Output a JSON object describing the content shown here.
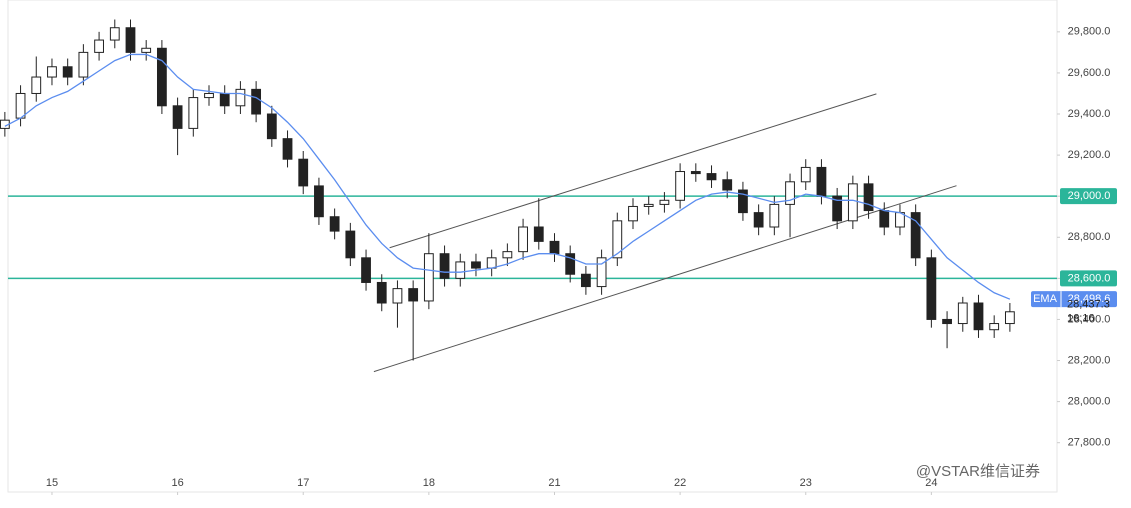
{
  "chart_data": {
    "type": "candlestick",
    "x": [
      0,
      1,
      2,
      3,
      4,
      5,
      6,
      7,
      8,
      9,
      10,
      11,
      12,
      13,
      14,
      15,
      16,
      17,
      18,
      19,
      20,
      21,
      22,
      23,
      24,
      25,
      26,
      27,
      28,
      29,
      30,
      31,
      32,
      33,
      34,
      35,
      36,
      37,
      38,
      39,
      40,
      41,
      42,
      43,
      44,
      45,
      46,
      47,
      48,
      49,
      50,
      51,
      52,
      53,
      54,
      55,
      56,
      57,
      58,
      59,
      60,
      61,
      62,
      63,
      64
    ],
    "open": [
      29330,
      29380,
      29500,
      29580,
      29630,
      29580,
      29700,
      29760,
      29820,
      29700,
      29720,
      29440,
      29330,
      29480,
      29500,
      29440,
      29520,
      29400,
      29280,
      29180,
      29050,
      28900,
      28830,
      28700,
      28580,
      28480,
      28550,
      28490,
      28720,
      28600,
      28680,
      28650,
      28700,
      28730,
      28850,
      28780,
      28720,
      28620,
      28560,
      28700,
      28880,
      28950,
      28960,
      28980,
      29120,
      29110,
      29080,
      29030,
      28920,
      28850,
      28960,
      29070,
      29140,
      29000,
      28880,
      29060,
      28930,
      28850,
      28920,
      28700,
      28400,
      28380,
      28480,
      28350,
      28380
    ],
    "high": [
      29410,
      29540,
      29680,
      29670,
      29670,
      29740,
      29800,
      29860,
      29860,
      29760,
      29760,
      29480,
      29520,
      29540,
      29540,
      29560,
      29560,
      29440,
      29320,
      29220,
      29090,
      28940,
      28870,
      28740,
      28620,
      28590,
      28590,
      28820,
      28760,
      28720,
      28720,
      28740,
      28770,
      28890,
      28990,
      28820,
      28760,
      28660,
      28740,
      28920,
      28990,
      29000,
      29020,
      29160,
      29160,
      29150,
      29120,
      29070,
      28960,
      29000,
      29110,
      29180,
      29180,
      29040,
      29100,
      29100,
      28970,
      28960,
      28960,
      28740,
      28440,
      28510,
      28520,
      28420,
      28480
    ],
    "low": [
      29290,
      29340,
      29460,
      29540,
      29540,
      29540,
      29660,
      29720,
      29660,
      29660,
      29400,
      29200,
      29290,
      29440,
      29400,
      29400,
      29360,
      29240,
      29140,
      29010,
      28860,
      28790,
      28660,
      28540,
      28440,
      28360,
      28200,
      28450,
      28560,
      28560,
      28610,
      28610,
      28660,
      28690,
      28740,
      28680,
      28580,
      28520,
      28520,
      28660,
      28840,
      28910,
      28920,
      28940,
      29070,
      29040,
      28990,
      28880,
      28810,
      28810,
      28800,
      29030,
      28960,
      28840,
      28840,
      28890,
      28810,
      28810,
      28660,
      28360,
      28260,
      28340,
      28310,
      28310,
      28340
    ],
    "close": [
      29370,
      29500,
      29580,
      29630,
      29580,
      29700,
      29760,
      29820,
      29700,
      29720,
      29440,
      29330,
      29480,
      29500,
      29440,
      29520,
      29400,
      29280,
      29180,
      29050,
      28900,
      28830,
      28700,
      28580,
      28480,
      28550,
      28490,
      28720,
      28600,
      28680,
      28650,
      28700,
      28730,
      28850,
      28780,
      28720,
      28620,
      28560,
      28700,
      28880,
      28950,
      28960,
      28980,
      29120,
      29110,
      29080,
      29030,
      28920,
      28850,
      28960,
      29070,
      29140,
      29000,
      28880,
      29060,
      28930,
      28850,
      28920,
      28700,
      28400,
      28380,
      28480,
      28350,
      28380,
      28437.3
    ],
    "up_color": "#ffffff",
    "down_color": "#222222",
    "series": [
      {
        "name": "EMA",
        "color": "#5b8def",
        "values": [
          29340,
          29380,
          29440,
          29480,
          29510,
          29560,
          29610,
          29660,
          29690,
          29690,
          29660,
          29580,
          29520,
          29510,
          29500,
          29500,
          29480,
          29430,
          29360,
          29280,
          29180,
          29080,
          28970,
          28860,
          28770,
          28700,
          28650,
          28640,
          28630,
          28630,
          28640,
          28650,
          28670,
          28700,
          28720,
          28720,
          28700,
          28670,
          28670,
          28720,
          28780,
          28830,
          28880,
          28930,
          28980,
          29010,
          29020,
          29010,
          28990,
          28970,
          28980,
          29010,
          29000,
          28980,
          28980,
          28960,
          28930,
          28920,
          28880,
          28790,
          28700,
          28640,
          28580,
          28530,
          28498.6
        ],
        "last_label": "28,498.6"
      }
    ],
    "last_price_label": "28,437.3",
    "countdown": "16:16",
    "hlines": [
      {
        "value": 29000,
        "label": "29,000.0",
        "color": "#2bb59a"
      },
      {
        "value": 28600,
        "label": "28,600.0",
        "color": "#2bb59a"
      }
    ],
    "trendlines": [
      {
        "x": [
          24.5,
          55.5
        ],
        "y": [
          28749,
          29498
        ]
      },
      {
        "x": [
          23.5,
          60.6
        ],
        "y": [
          28146,
          29051
        ]
      }
    ],
    "xlim": [
      0.2,
      67.0
    ],
    "ylim": [
      27560,
      29955
    ],
    "xticks": [
      {
        "value": 3,
        "label": "15"
      },
      {
        "value": 11,
        "label": "16"
      },
      {
        "value": 19,
        "label": "17"
      },
      {
        "value": 27,
        "label": "18"
      },
      {
        "value": 35,
        "label": "21"
      },
      {
        "value": 43,
        "label": "22"
      },
      {
        "value": 51,
        "label": "23"
      },
      {
        "value": 59,
        "label": "24"
      }
    ],
    "yticks": [
      {
        "value": 27800,
        "label": "27,800.0"
      },
      {
        "value": 28000,
        "label": "28,000.0"
      },
      {
        "value": 28200,
        "label": "28,200.0"
      },
      {
        "value": 28400,
        "label": "28,400.0"
      },
      {
        "value": 28600,
        "label": "28,600.0"
      },
      {
        "value": 28800,
        "label": "28,800.0"
      },
      {
        "value": 29000,
        "label": "29,000.0"
      },
      {
        "value": 29200,
        "label": "29,200.0"
      },
      {
        "value": 29400,
        "label": "29,400.0"
      },
      {
        "value": 29600,
        "label": "29,600.0"
      },
      {
        "value": 29800,
        "label": "29,800.0"
      }
    ],
    "watermark": "@VSTAR维信证券"
  }
}
